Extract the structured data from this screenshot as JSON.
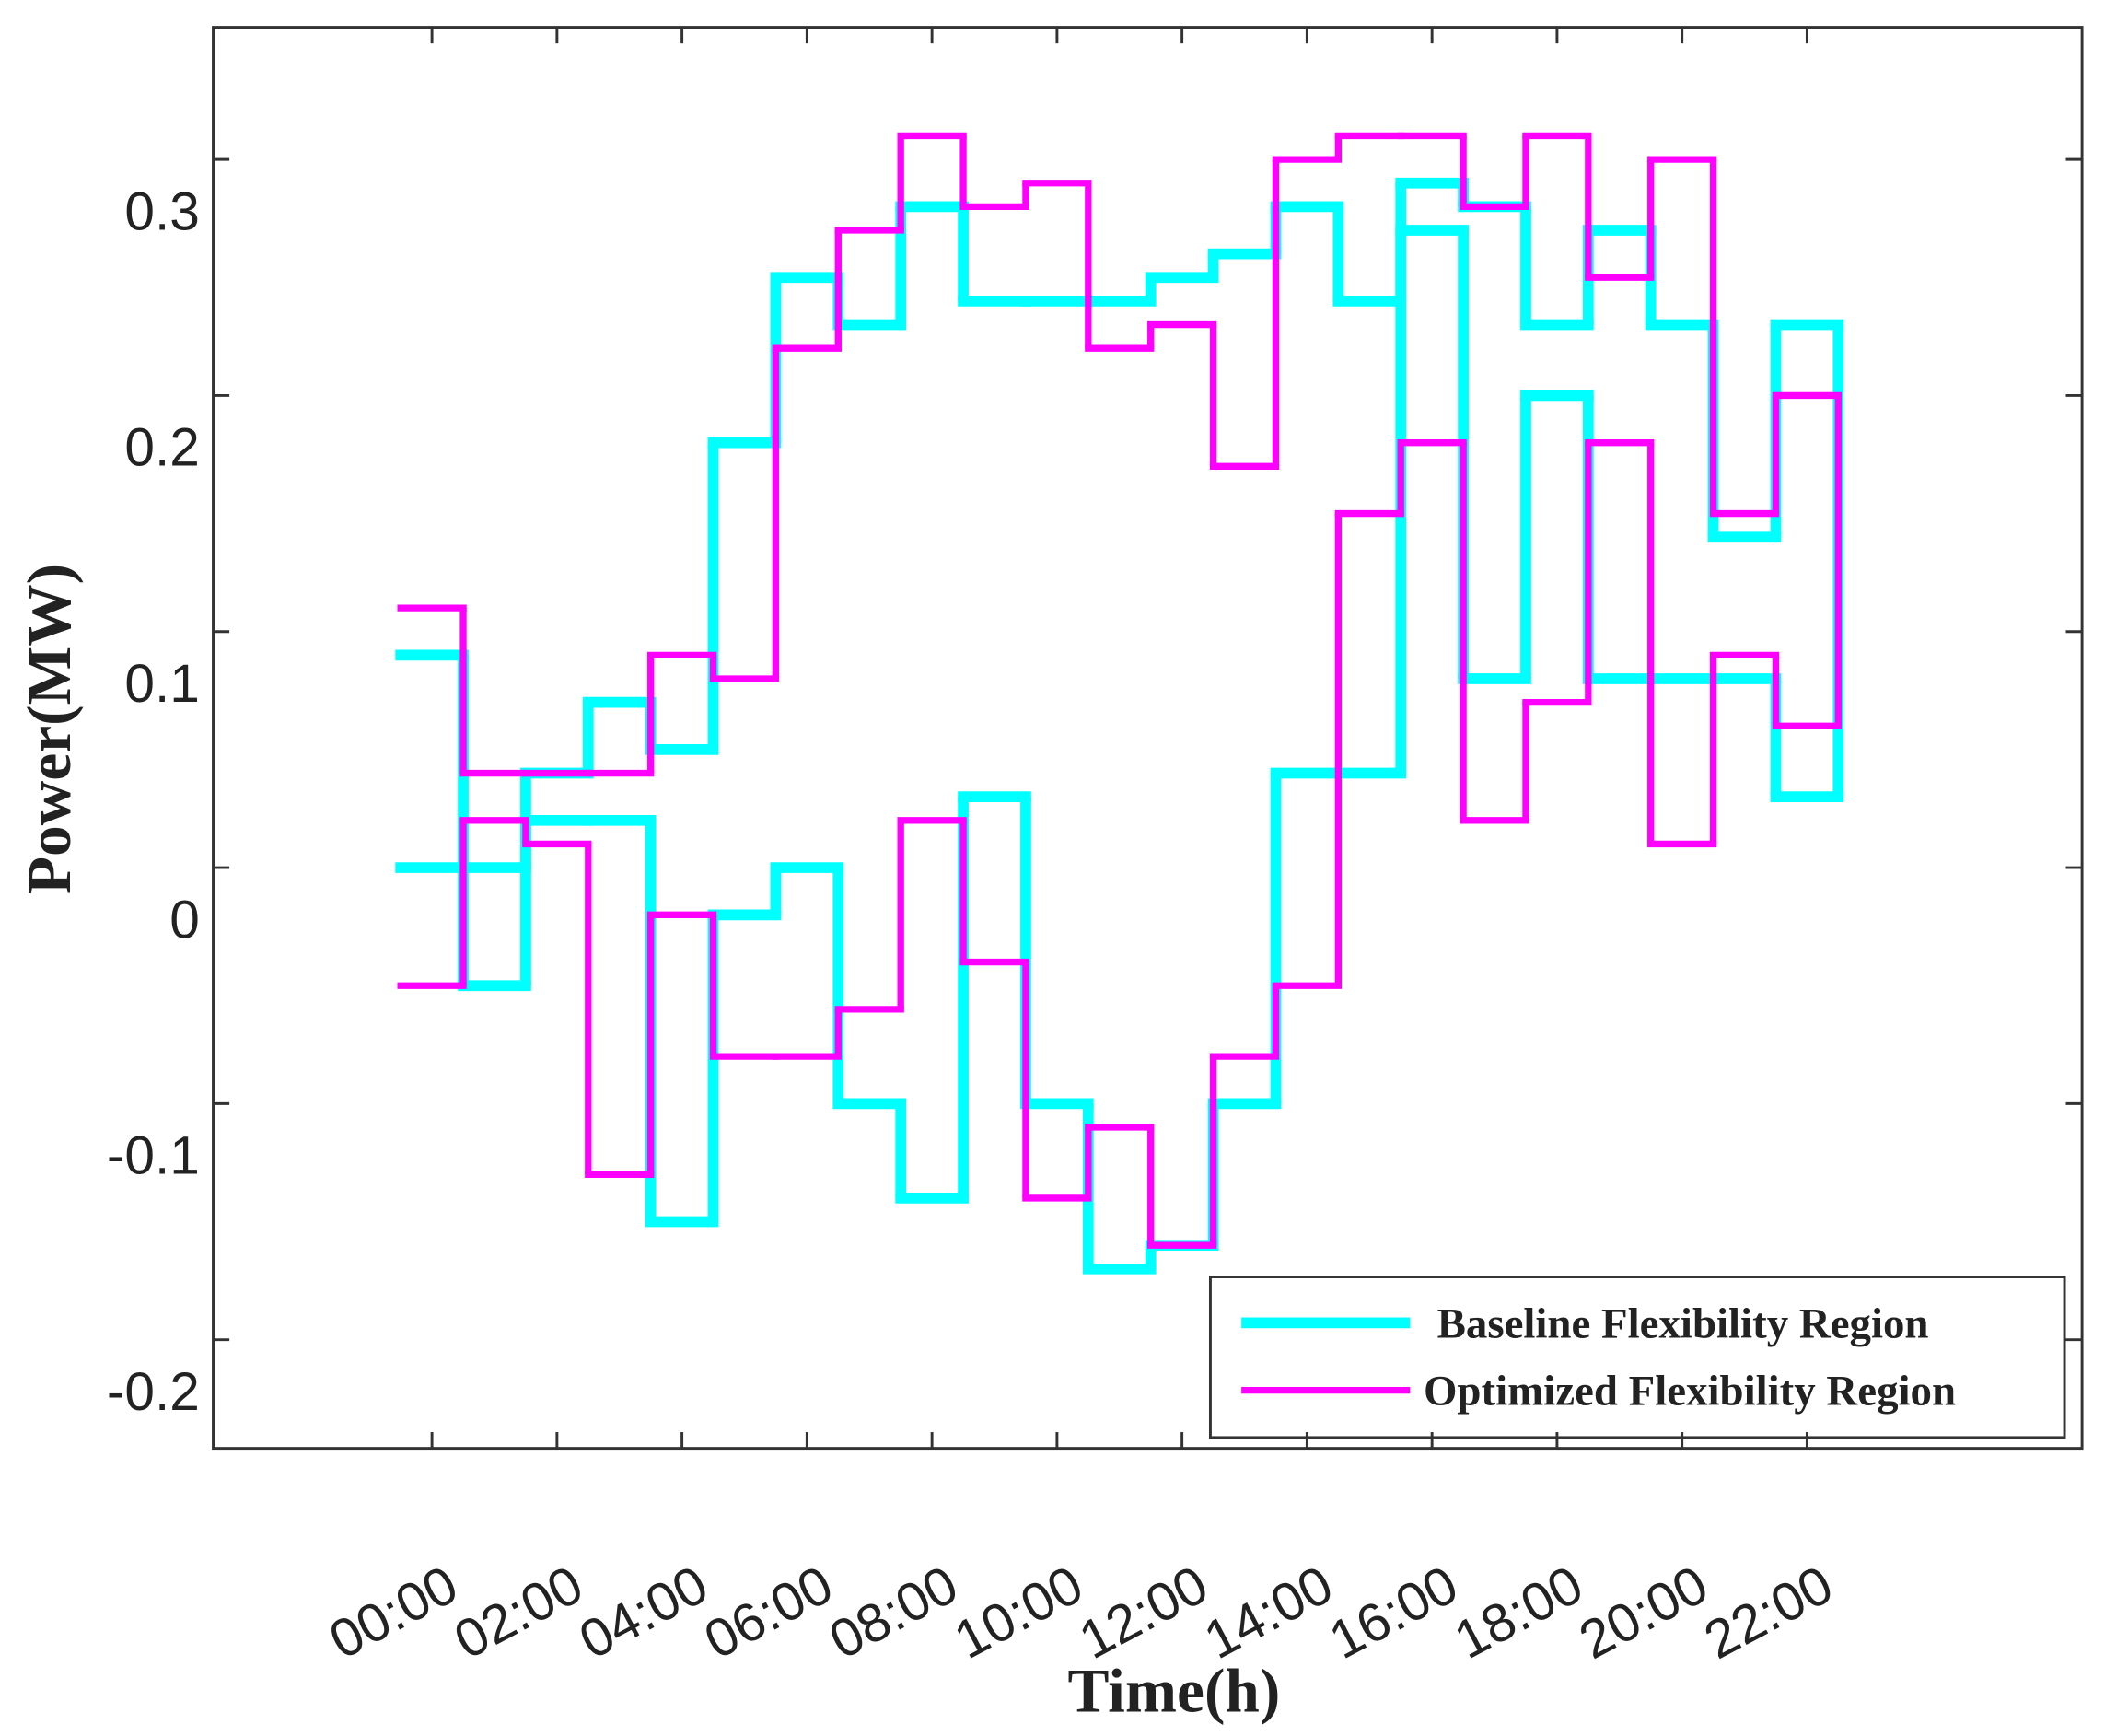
{
  "chart_data": {
    "type": "step",
    "x_label": "Time(h)",
    "y_label": "Power(MW)",
    "categories": [
      "00:00",
      null,
      "02:00",
      null,
      "04:00",
      null,
      "06:00",
      null,
      "08:00",
      null,
      "10:00",
      null,
      "12:00",
      null,
      "14:00",
      null,
      "16:00",
      null,
      "18:00",
      null,
      "20:00",
      null,
      "22:00",
      null
    ],
    "xlim": [
      -3.5,
      26.4
    ],
    "ylim": [
      -0.246,
      0.356
    ],
    "yticks": [
      -0.2,
      -0.1,
      0,
      0.1,
      0.2,
      0.3
    ],
    "legend_position": "lower right",
    "series": [
      {
        "name": "Baseline Flexibility Region",
        "color": "#00ffff",
        "upper": [
          0.09,
          0,
          0.04,
          0.07,
          0.05,
          0.18,
          0.25,
          0.23,
          0.28,
          0.24,
          0.24,
          0.24,
          0.25,
          0.26,
          0.28,
          0.24,
          0.29,
          0.28,
          0.23,
          0.27,
          0.23,
          0.14,
          0.23
        ],
        "lower": [
          0,
          -0.05,
          0.02,
          0.02,
          -0.15,
          -0.02,
          0,
          -0.1,
          -0.14,
          0.03,
          -0.1,
          -0.17,
          -0.16,
          -0.1,
          0.04,
          0.04,
          0.27,
          0.08,
          0.2,
          0.08,
          0.08,
          0.08,
          0.03
        ]
      },
      {
        "name": "Optimized Flexibility Region",
        "color": "#ff00ff",
        "upper": [
          0.11,
          0.04,
          0.04,
          0.04,
          0.09,
          0.08,
          0.22,
          0.27,
          0.31,
          0.28,
          0.29,
          0.22,
          0.23,
          0.17,
          0.3,
          0.31,
          0.31,
          0.28,
          0.31,
          0.25,
          0.3,
          0.15,
          0.2
        ],
        "lower": [
          -0.05,
          0.02,
          0.01,
          -0.13,
          -0.02,
          -0.08,
          -0.08,
          -0.06,
          0.02,
          -0.04,
          -0.14,
          -0.11,
          -0.16,
          -0.08,
          -0.05,
          0.15,
          0.18,
          0.02,
          0.07,
          0.18,
          0.01,
          0.09,
          0.06
        ]
      }
    ]
  }
}
